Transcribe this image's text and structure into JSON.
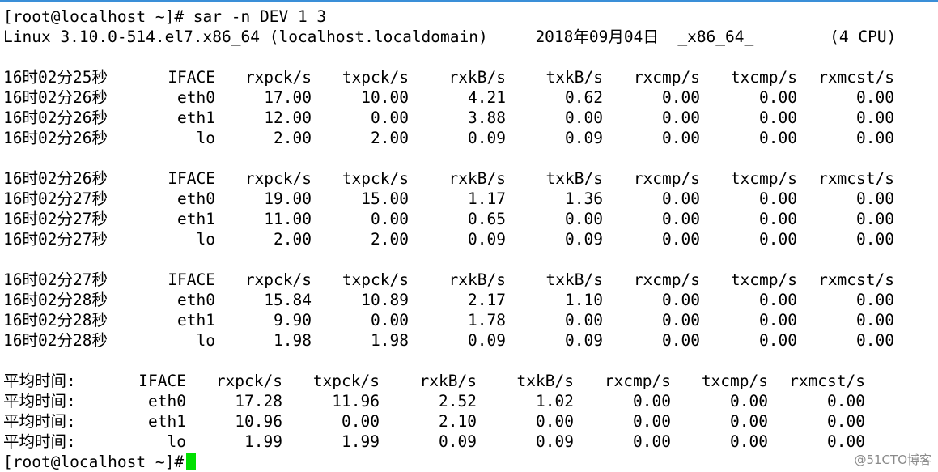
{
  "terminal": {
    "prompt_line": "[root@localhost ~]# sar -n DEV 1 3",
    "system_line": "Linux 3.10.0-514.el7.x86_64 (localhost.localdomain)     2018年09月04日  _x86_64_        (4 CPU)",
    "final_prompt": "[root@localhost ~]#"
  },
  "columns": [
    "IFACE",
    "rxpck/s",
    "txpck/s",
    "rxkB/s",
    "txkB/s",
    "rxcmp/s",
    "txcmp/s",
    "rxmcst/s"
  ],
  "blocks": [
    {
      "header_time": "16时02分25秒",
      "rows": [
        [
          "16时02分26秒",
          "eth0",
          "17.00",
          "10.00",
          "4.21",
          "0.62",
          "0.00",
          "0.00",
          "0.00"
        ],
        [
          "16时02分26秒",
          "eth1",
          "12.00",
          "0.00",
          "3.88",
          "0.00",
          "0.00",
          "0.00",
          "0.00"
        ],
        [
          "16时02分26秒",
          "lo",
          "2.00",
          "2.00",
          "0.09",
          "0.09",
          "0.00",
          "0.00",
          "0.00"
        ]
      ]
    },
    {
      "header_time": "16时02分26秒",
      "rows": [
        [
          "16时02分27秒",
          "eth0",
          "19.00",
          "15.00",
          "1.17",
          "1.36",
          "0.00",
          "0.00",
          "0.00"
        ],
        [
          "16时02分27秒",
          "eth1",
          "11.00",
          "0.00",
          "0.65",
          "0.00",
          "0.00",
          "0.00",
          "0.00"
        ],
        [
          "16时02分27秒",
          "lo",
          "2.00",
          "2.00",
          "0.09",
          "0.09",
          "0.00",
          "0.00",
          "0.00"
        ]
      ]
    },
    {
      "header_time": "16时02分27秒",
      "rows": [
        [
          "16时02分28秒",
          "eth0",
          "15.84",
          "10.89",
          "2.17",
          "1.10",
          "0.00",
          "0.00",
          "0.00"
        ],
        [
          "16时02分28秒",
          "eth1",
          "9.90",
          "0.00",
          "1.78",
          "0.00",
          "0.00",
          "0.00",
          "0.00"
        ],
        [
          "16时02分28秒",
          "lo",
          "1.98",
          "1.98",
          "0.09",
          "0.09",
          "0.00",
          "0.00",
          "0.00"
        ]
      ]
    }
  ],
  "average": {
    "label": "平均时间:",
    "rows": [
      [
        "平均时间:",
        "eth0",
        "17.28",
        "11.96",
        "2.52",
        "1.02",
        "0.00",
        "0.00",
        "0.00"
      ],
      [
        "平均时间:",
        "eth1",
        "10.96",
        "0.00",
        "2.10",
        "0.00",
        "0.00",
        "0.00",
        "0.00"
      ],
      [
        "平均时间:",
        "lo",
        "1.99",
        "1.99",
        "0.09",
        "0.09",
        "0.00",
        "0.00",
        "0.00"
      ]
    ]
  },
  "watermark": "@51CTO博客",
  "colors": {
    "background": "#ffffff",
    "text": "#000000",
    "cursor": "#00e000"
  }
}
